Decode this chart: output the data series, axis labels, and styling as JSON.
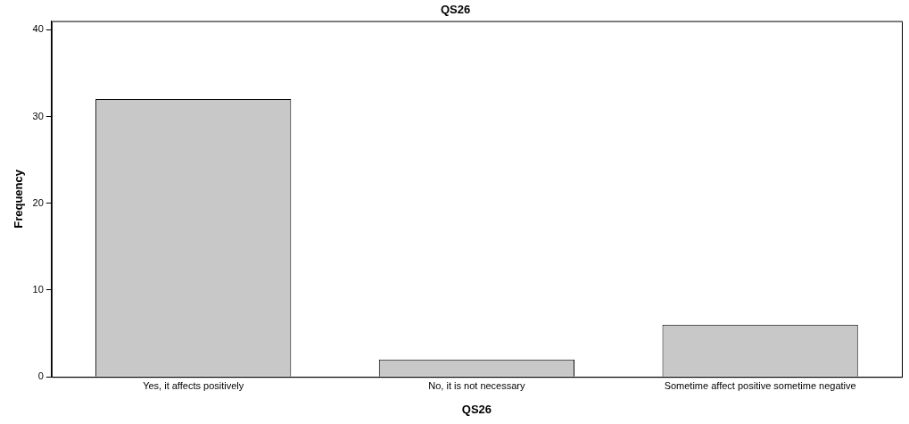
{
  "chart_data": {
    "type": "bar",
    "title": "QS26",
    "xlabel": "QS26",
    "ylabel": "Frequency",
    "categories": [
      "Yes, it affects positively",
      "No, it is not necessary",
      "Sometime affect positive sometime negative"
    ],
    "values": [
      32,
      2,
      6
    ],
    "color": "#c8c8c8",
    "ylim": [
      0,
      41
    ],
    "yticks": [
      0,
      10,
      20,
      30,
      40
    ],
    "grid": false,
    "legend": false
  }
}
